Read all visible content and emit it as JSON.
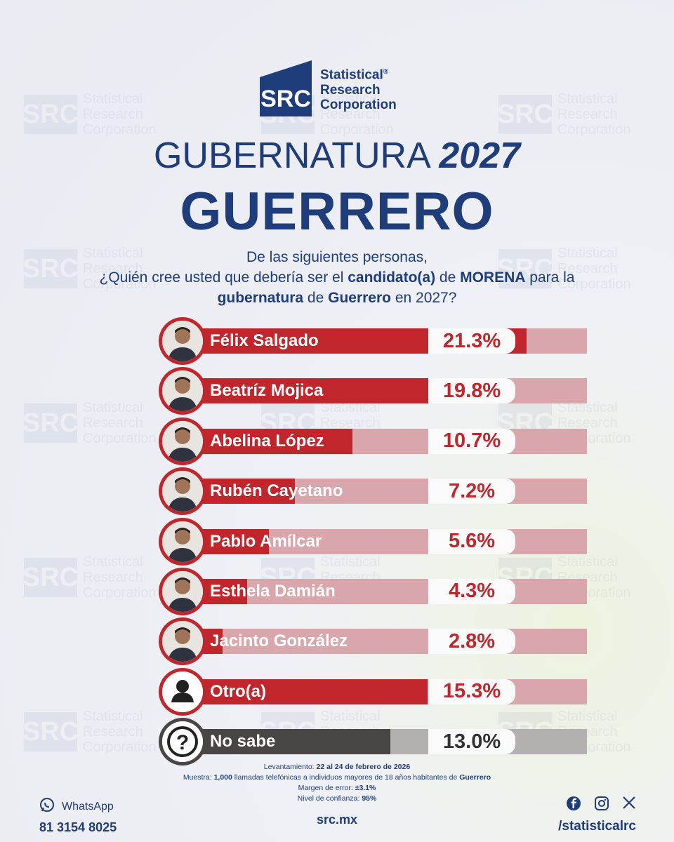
{
  "logo": {
    "mark": "SRC",
    "line1": "Statistical",
    "registered": "®",
    "line2": "Research",
    "line3": "Corporation"
  },
  "title": {
    "prefix": "GUBERNATURA",
    "year": "2027",
    "state": "GUERRERO"
  },
  "question": {
    "line1": "De las siguientes personas,",
    "l2a": "¿Quién cree usted que debería ser el ",
    "l2b": "candidato(a)",
    "l2c": " de ",
    "l2d": "MORENA",
    "l2e": " para la",
    "l3a": "gubernatura",
    "l3b": " de ",
    "l3c": "Guerrero",
    "l3d": " en 2027?"
  },
  "chart_data": {
    "type": "bar",
    "categories": [
      "Félix Salgado",
      "Beatríz Mojica",
      "Abelina López",
      "Rubén Cayetano",
      "Pablo Amílcar",
      "Esthela Damián",
      "Jacinto González",
      "Otro(a)",
      "No sabe"
    ],
    "values": [
      21.3,
      19.8,
      10.7,
      7.2,
      5.6,
      4.3,
      2.8,
      15.3,
      13.0
    ],
    "labels": [
      "21.3%",
      "19.8%",
      "10.7%",
      "7.2%",
      "5.6%",
      "4.3%",
      "2.8%",
      "15.3%",
      "13.0%"
    ],
    "icons": [
      "person-photo",
      "person-photo",
      "person-photo",
      "person-photo",
      "person-photo",
      "person-photo",
      "person-photo",
      "user-icon",
      "question-icon"
    ],
    "colors": {
      "bar": "#c1262c",
      "track": "#d9a7ab",
      "gray_bar": "#4a4545",
      "gray_track": "#b4b0b0"
    },
    "xlim": [
      0,
      25
    ]
  },
  "notes": {
    "l1a": "Levantamiento: ",
    "l1b": "22 al 24 de febrero de 2026",
    "l2a": "Muestra: ",
    "l2b": "1,000",
    "l2c": " llamadas telefónicas a individuos mayores de 18 años habitantes de ",
    "l2d": "Guerrero",
    "l3a": "Margen de error: ",
    "l3b": "±3.1%",
    "l4a": "Nivel de confianza: ",
    "l4b": "95%"
  },
  "footer": {
    "whatsapp_label": "WhatsApp",
    "whatsapp_number": "81 3154 8025",
    "site": "src.mx",
    "handle": "/statisticalrc"
  }
}
